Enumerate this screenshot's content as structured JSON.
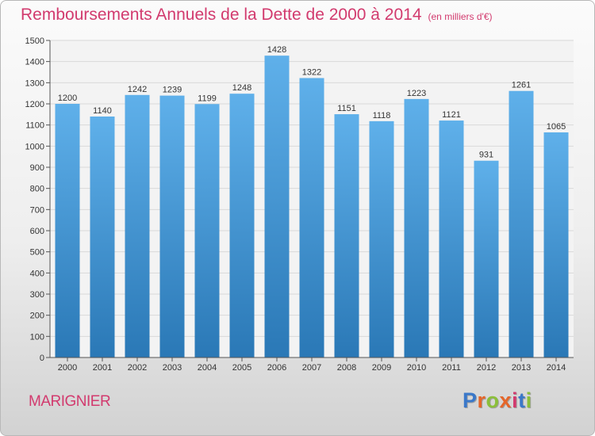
{
  "header": {
    "title": "Remboursements Annuels de la Dette de 2000 à 2014",
    "subtitle": "(en milliers d'€)"
  },
  "footer": {
    "commune": "MARIGNIER",
    "logo_text": "Proxiti",
    "logo_colors": [
      "#3a78c9",
      "#e5662a",
      "#8bbf3a",
      "#e5662a",
      "#d23a6e",
      "#3a78c9",
      "#8bbf3a"
    ]
  },
  "colors": {
    "title": "#d23a6e",
    "bar_top": "#5fb0ea",
    "bar_bottom": "#2a78b6",
    "axis": "#555555",
    "grid": "#d8d8d8"
  },
  "chart_data": {
    "type": "bar",
    "categories": [
      "2000",
      "2001",
      "2002",
      "2003",
      "2004",
      "2005",
      "2006",
      "2007",
      "2008",
      "2009",
      "2010",
      "2011",
      "2012",
      "2013",
      "2014"
    ],
    "values": [
      1200,
      1140,
      1242,
      1239,
      1199,
      1248,
      1428,
      1322,
      1151,
      1118,
      1223,
      1121,
      931,
      1261,
      1065
    ],
    "ylim": [
      0,
      1500
    ],
    "ytick_step": 100,
    "grid": "horizontal",
    "data_labels": true,
    "legend": "none"
  }
}
